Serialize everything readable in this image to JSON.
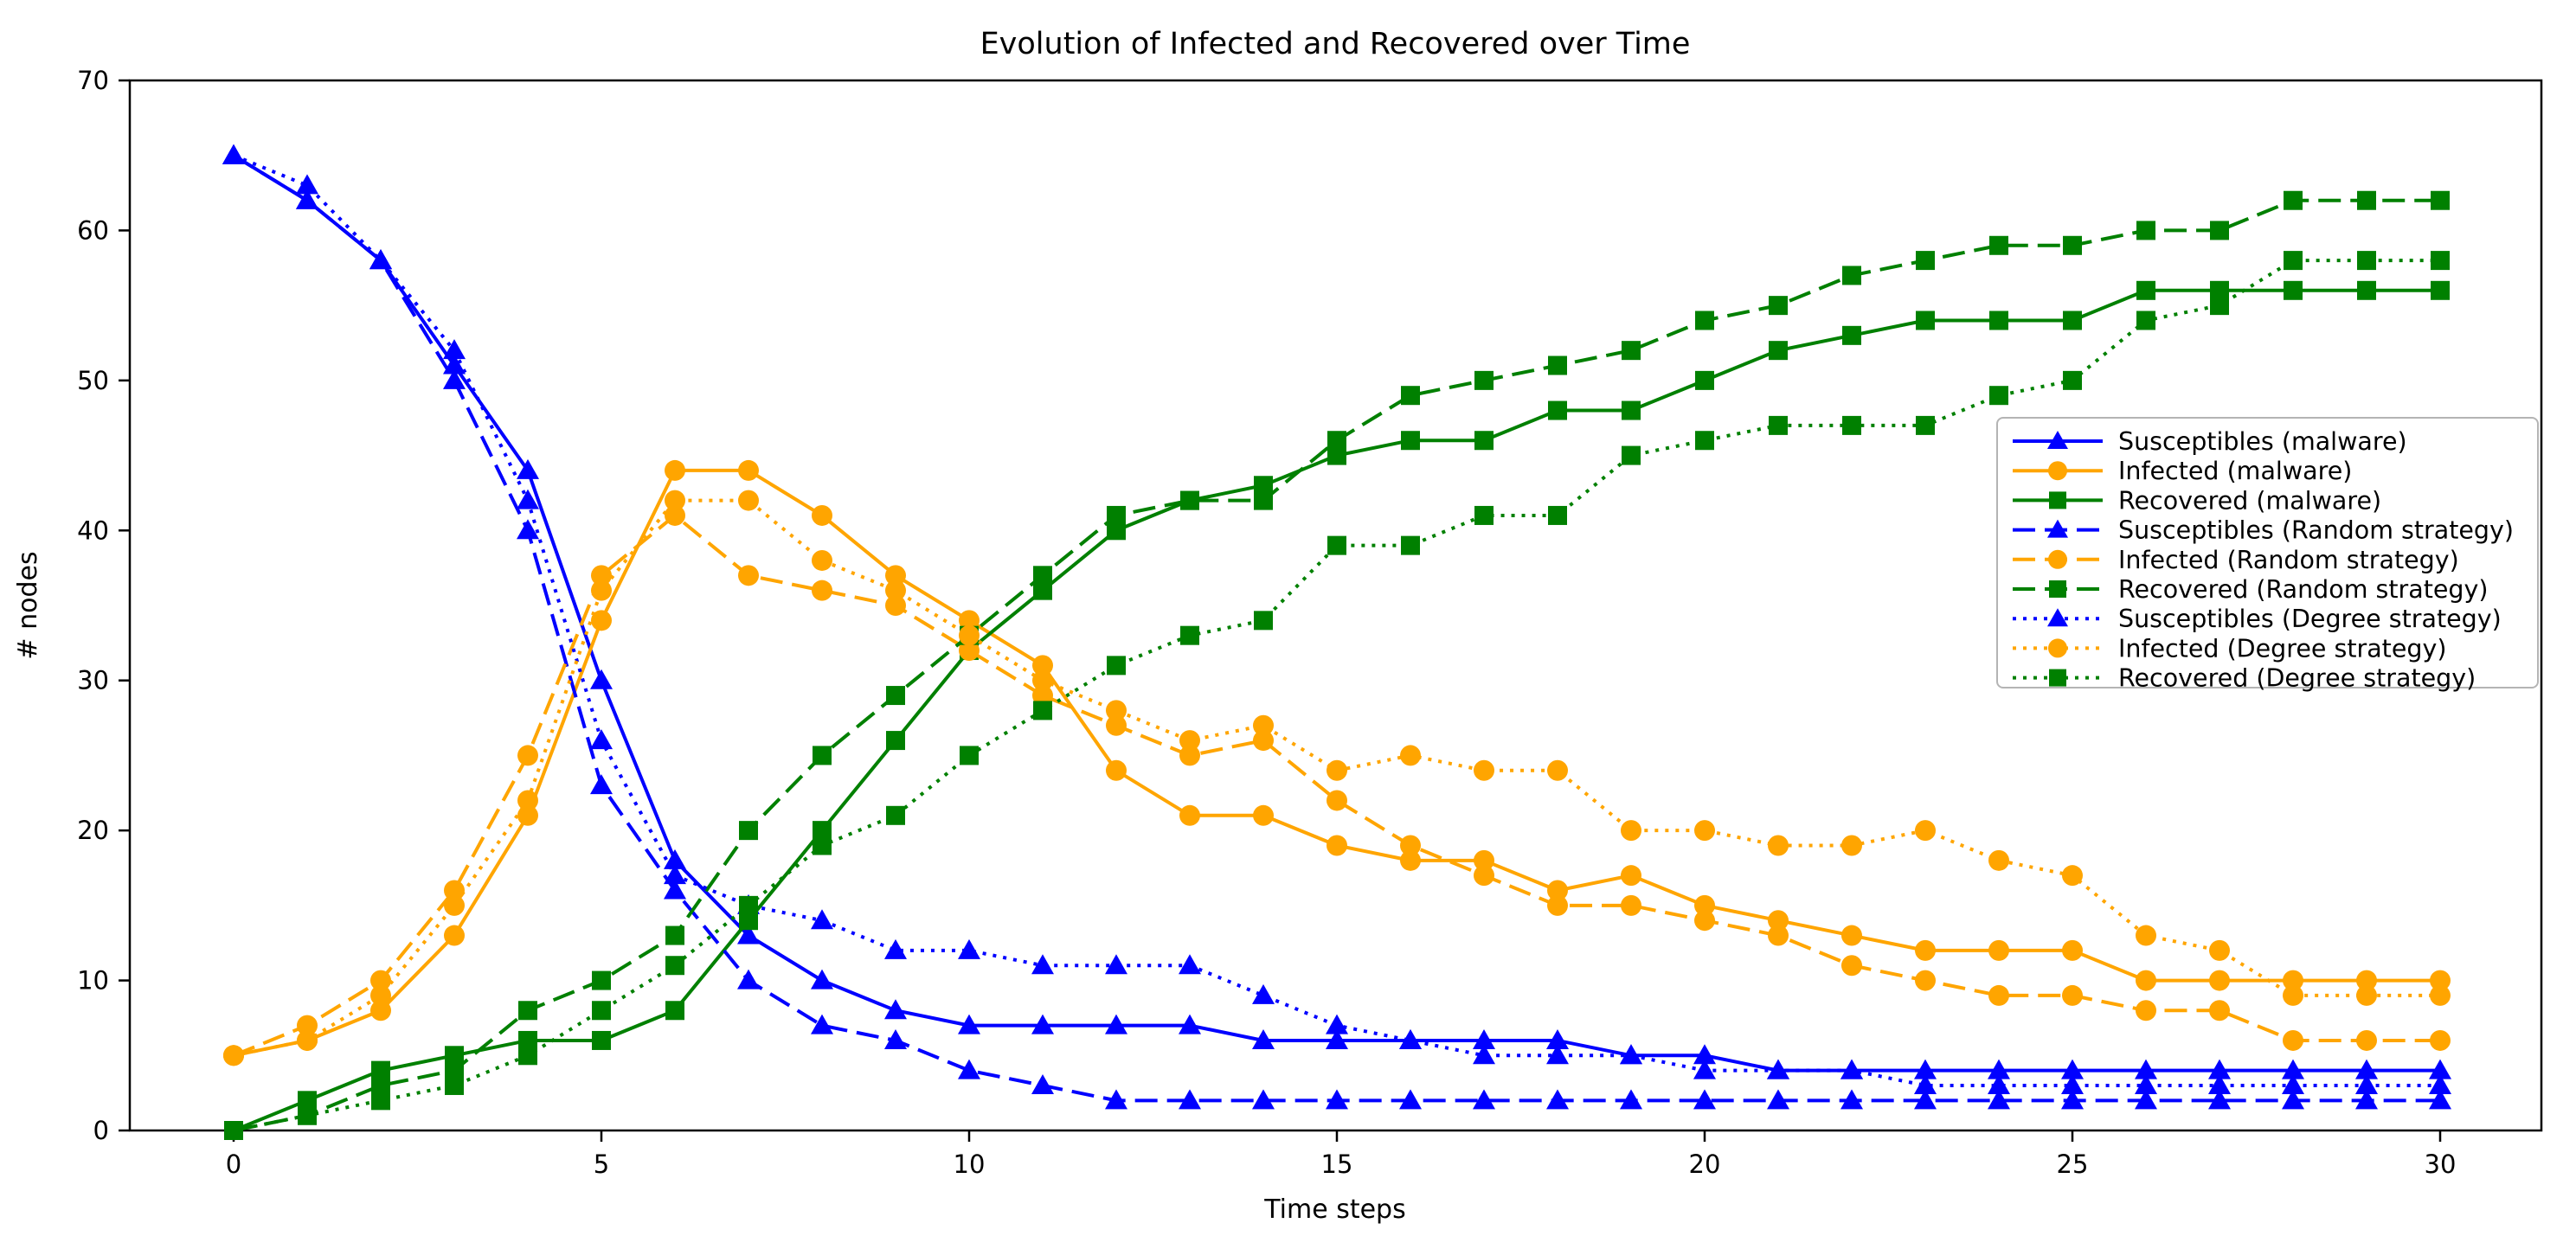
{
  "title": "Evolution of Infected and Recovered over Time",
  "axes": {
    "xlabel": "Time steps",
    "ylabel": "# nodes",
    "x_ticks": [
      0,
      5,
      10,
      15,
      20,
      25,
      30
    ],
    "y_ticks": [
      0,
      10,
      20,
      30,
      40,
      50,
      60,
      70
    ],
    "xlim": [
      -1.5,
      31.5
    ],
    "ylim": [
      0,
      70
    ],
    "grid": false
  },
  "palette": {
    "blue": "#0000ff",
    "orange": "#ffa500",
    "green": "#008000"
  },
  "legend_position": "center-right",
  "chart_data": {
    "type": "line",
    "x": [
      0,
      1,
      2,
      3,
      4,
      5,
      6,
      7,
      8,
      9,
      10,
      11,
      12,
      13,
      14,
      15,
      16,
      17,
      18,
      19,
      20,
      21,
      22,
      23,
      24,
      25,
      26,
      27,
      28,
      29,
      30
    ],
    "series": [
      {
        "label": "Susceptibles (malware)",
        "color": "blue",
        "dash": "solid",
        "marker": "triangle",
        "values": [
          65,
          62,
          58,
          51,
          44,
          30,
          18,
          13,
          10,
          8,
          7,
          7,
          7,
          7,
          6,
          6,
          6,
          6,
          6,
          5,
          5,
          4,
          4,
          4,
          4,
          4,
          4,
          4,
          4,
          4,
          4
        ]
      },
      {
        "label": "Infected (malware)",
        "color": "orange",
        "dash": "solid",
        "marker": "circle",
        "values": [
          5,
          6,
          8,
          13,
          21,
          34,
          44,
          44,
          41,
          37,
          34,
          31,
          24,
          21,
          21,
          19,
          18,
          18,
          16,
          17,
          15,
          14,
          13,
          12,
          12,
          12,
          10,
          10,
          10,
          10,
          10
        ]
      },
      {
        "label": "Recovered (malware)",
        "color": "green",
        "dash": "solid",
        "marker": "square",
        "values": [
          0,
          2,
          4,
          5,
          6,
          6,
          8,
          14,
          20,
          26,
          32,
          36,
          40,
          42,
          43,
          45,
          46,
          46,
          48,
          48,
          50,
          52,
          53,
          54,
          54,
          54,
          56,
          56,
          56,
          56,
          56
        ]
      },
      {
        "label": "Susceptibles (Random strategy)",
        "color": "blue",
        "dash": "dashed",
        "marker": "triangle",
        "values": [
          65,
          62,
          58,
          50,
          40,
          23,
          16,
          10,
          7,
          6,
          4,
          3,
          2,
          2,
          2,
          2,
          2,
          2,
          2,
          2,
          2,
          2,
          2,
          2,
          2,
          2,
          2,
          2,
          2,
          2,
          2
        ]
      },
      {
        "label": "Infected (Random strategy)",
        "color": "orange",
        "dash": "dashed",
        "marker": "circle",
        "values": [
          5,
          7,
          10,
          16,
          25,
          37,
          41,
          37,
          36,
          35,
          32,
          29,
          27,
          25,
          26,
          22,
          19,
          17,
          15,
          15,
          14,
          13,
          11,
          10,
          9,
          9,
          8,
          8,
          6,
          6,
          6
        ]
      },
      {
        "label": "Recovered (Random strategy)",
        "color": "green",
        "dash": "dashed",
        "marker": "square",
        "values": [
          0,
          1,
          3,
          4,
          8,
          10,
          13,
          20,
          25,
          29,
          33,
          37,
          41,
          42,
          42,
          46,
          49,
          50,
          51,
          52,
          54,
          55,
          57,
          58,
          59,
          59,
          60,
          60,
          62,
          62,
          62
        ]
      },
      {
        "label": "Susceptibles (Degree strategy)",
        "color": "blue",
        "dash": "dotted",
        "marker": "triangle",
        "values": [
          65,
          63,
          58,
          52,
          42,
          26,
          17,
          15,
          14,
          12,
          12,
          11,
          11,
          11,
          9,
          7,
          6,
          5,
          5,
          5,
          4,
          4,
          4,
          3,
          3,
          3,
          3,
          3,
          3,
          3,
          3
        ]
      },
      {
        "label": "Infected (Degree strategy)",
        "color": "orange",
        "dash": "dotted",
        "marker": "circle",
        "values": [
          5,
          6,
          9,
          15,
          22,
          36,
          42,
          42,
          38,
          36,
          33,
          30,
          28,
          26,
          27,
          24,
          25,
          24,
          24,
          20,
          20,
          19,
          19,
          20,
          18,
          17,
          13,
          12,
          9,
          9,
          9
        ]
      },
      {
        "label": "Recovered (Degree strategy)",
        "color": "green",
        "dash": "dotted",
        "marker": "square",
        "values": [
          0,
          1,
          2,
          3,
          5,
          8,
          11,
          15,
          19,
          21,
          25,
          28,
          31,
          33,
          34,
          39,
          39,
          41,
          41,
          45,
          46,
          47,
          47,
          47,
          49,
          50,
          54,
          55,
          58,
          58,
          58
        ]
      }
    ]
  }
}
